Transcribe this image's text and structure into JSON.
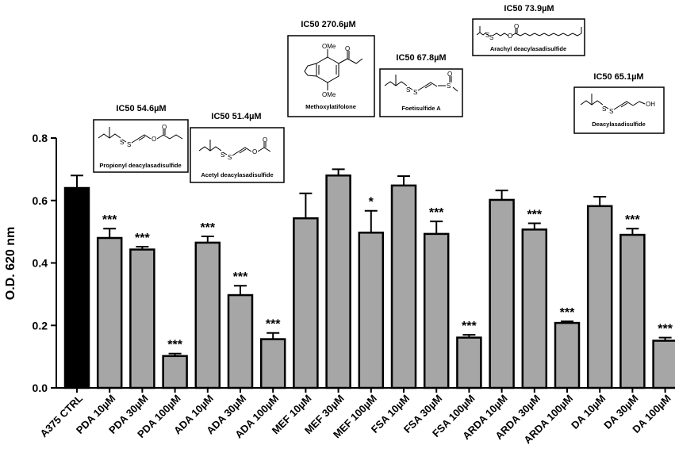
{
  "chart_data": {
    "type": "bar",
    "title": "",
    "xlabel": "",
    "ylabel": "O.D. 620 nm",
    "ylim": [
      0,
      0.8
    ],
    "yticks": [
      "0.0",
      "0.2",
      "0.4",
      "0.6",
      "0.8"
    ],
    "categories": [
      "A375 CTRL",
      "PDA 10µM",
      "PDA 30µM",
      "PDA 100µM",
      "ADA 10µM",
      "ADA 30µM",
      "ADA 100µM",
      "MEF 10µM",
      "MEF 30µM",
      "MEF 100µM",
      "FSA 10µM",
      "FSA 30µM",
      "FSA 100µM",
      "ARDA 10µM",
      "ARDA 30µM",
      "ARDA 100µM",
      "DA 10µM",
      "DA 30µM",
      "DA 100µM"
    ],
    "values": [
      0.64,
      0.48,
      0.443,
      0.102,
      0.465,
      0.297,
      0.156,
      0.543,
      0.68,
      0.497,
      0.648,
      0.493,
      0.161,
      0.602,
      0.507,
      0.208,
      0.582,
      0.49,
      0.151
    ],
    "errors": [
      0.04,
      0.03,
      0.009,
      0.008,
      0.02,
      0.03,
      0.02,
      0.08,
      0.02,
      0.07,
      0.03,
      0.04,
      0.009,
      0.03,
      0.02,
      0.005,
      0.03,
      0.02,
      0.01
    ],
    "significance": [
      "",
      "***",
      "***",
      "***",
      "***",
      "***",
      "***",
      "",
      "",
      "*",
      "",
      "***",
      "***",
      "",
      "***",
      "***",
      "",
      "***",
      "***"
    ],
    "colors": {
      "control": "#000000",
      "treatment": "#a6a6a6",
      "outline": "#000000"
    }
  },
  "compounds": [
    {
      "ic50": "IC50 54.6µM",
      "name": "Propionyl deacylasadisulfide"
    },
    {
      "ic50": "IC50 51.4µM",
      "name": "Acetyl deacylasadisulfide"
    },
    {
      "ic50": "IC50 270.6µM",
      "name": "Methoxylatifolone"
    },
    {
      "ic50": "IC50 67.8µM",
      "name": "Foetisulfide A"
    },
    {
      "ic50": "IC50 73.9µM",
      "name": "Arachyl deacylasadisulfide"
    },
    {
      "ic50": "IC50 65.1µM",
      "name": "Deacylasadisulfide"
    }
  ],
  "atoms": {
    "S": "S",
    "O": "O",
    "OMe": "OMe",
    "OH": "OH"
  }
}
